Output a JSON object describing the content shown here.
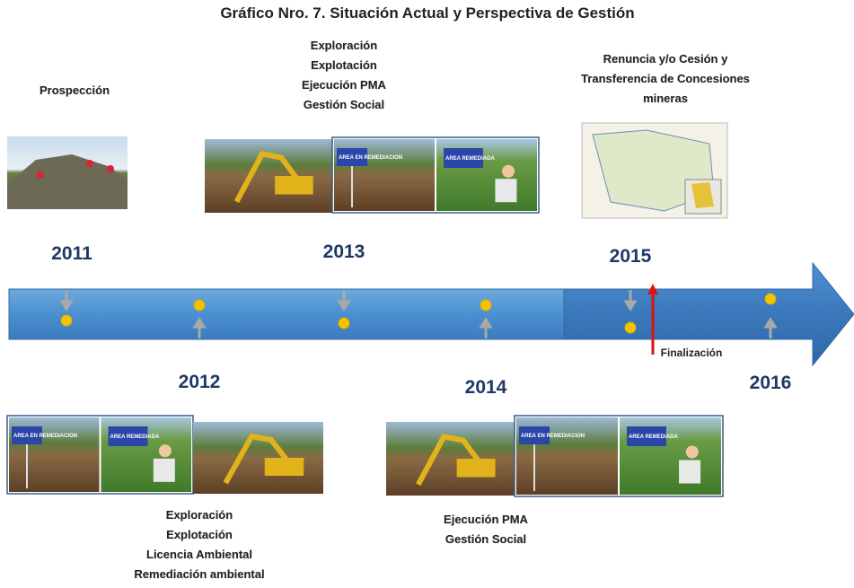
{
  "title": "Gráfico Nro. 7. Situación Actual y Perspectiva de Gestión",
  "timeline": [
    {
      "year": "2011",
      "lines": [
        "Prospección"
      ]
    },
    {
      "year": "2012",
      "lines": [
        "Exploración",
        "Explotación",
        "Licencia Ambiental",
        "Remediación ambiental"
      ]
    },
    {
      "year": "2013",
      "lines": [
        "Exploración",
        "Explotación",
        "Ejecución PMA",
        "Gestión Social"
      ]
    },
    {
      "year": "2014",
      "lines": [
        "Ejecución PMA",
        "Gestión Social"
      ]
    },
    {
      "year": "2015",
      "lines": [
        "Renuncia y/o Cesión y",
        "Transferencia de Concesiones",
        "mineras"
      ]
    },
    {
      "year": "2016"
    }
  ],
  "end_label": "Finalización",
  "photo_labels": [
    "AREA EN REMEDIACION",
    "AREA REMEDIADA"
  ]
}
